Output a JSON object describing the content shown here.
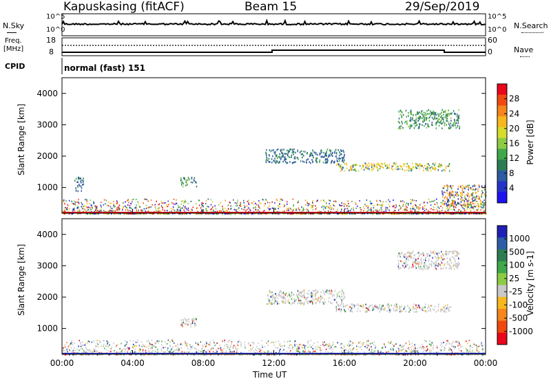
{
  "header": {
    "station": "Kapuskasing (fitACF)",
    "beam": "Beam 15",
    "date": "29/Sep/2019"
  },
  "top_panels": {
    "nsky_label": "N.Sky",
    "nsky_ticks": [
      "10^5",
      "10^0"
    ],
    "nsearch_label": "N.Search",
    "nsearch_ticks": [
      "10^5",
      "10^0"
    ],
    "freq_label_line1": "Freq.",
    "freq_label_line2": "[MHz]",
    "freq_ticks": [
      "18",
      "8"
    ],
    "nave_label": "Nave",
    "nave_ticks": [
      "60",
      "0"
    ],
    "cpid_label": "CPID",
    "cpid_value": "normal (fast) 151"
  },
  "axes": {
    "ylabel": "Slant Range [km]",
    "yticks": [
      "4000",
      "3000",
      "2000",
      "1000"
    ],
    "xticks": [
      "00:00",
      "04:00",
      "08:00",
      "12:00",
      "16:00",
      "20:00",
      "00:00"
    ],
    "xlabel": "Time UT"
  },
  "colorbars": {
    "power": {
      "label": "Power [dB]",
      "ticks": [
        "28",
        "24",
        "20",
        "16",
        "12",
        "8",
        "4"
      ],
      "colors": [
        "#e8071b",
        "#f04a10",
        "#f5851c",
        "#f8b81d",
        "#d7dc2c",
        "#8ecb44",
        "#3fa84a",
        "#2e7d52",
        "#2d5aa0",
        "#2633c8",
        "#1e12f0"
      ]
    },
    "velocity": {
      "label": "Velocity [m s-1]",
      "ticks": [
        "1000",
        "500",
        "100",
        "25",
        "-25",
        "-100",
        "-500",
        "-1000"
      ],
      "colors": [
        "#1f1fb5",
        "#2e5ca8",
        "#2e7d52",
        "#3fa84a",
        "#8ecb44",
        "#c9c9c9",
        "#f8b81d",
        "#f5851c",
        "#f04a10",
        "#e8071b"
      ]
    }
  },
  "chart_data": [
    {
      "type": "heatmap",
      "title": "Power",
      "xlabel": "Time UT",
      "ylabel": "Slant Range [km]",
      "xlim": [
        0,
        24
      ],
      "ylim": [
        180,
        4500
      ],
      "colorbar": {
        "label": "Power [dB]",
        "range": [
          0,
          30
        ]
      },
      "features": [
        {
          "t": [
            0.0,
            24.0
          ],
          "range": [
            180,
            650
          ],
          "level": "high-mixed"
        },
        {
          "t": [
            0.7,
            1.2
          ],
          "range": [
            900,
            1350
          ],
          "level": "low"
        },
        {
          "t": [
            6.7,
            7.6
          ],
          "range": [
            1050,
            1350
          ],
          "level": "medium"
        },
        {
          "t": [
            11.5,
            16.0
          ],
          "range": [
            1800,
            2250
          ],
          "level": "low"
        },
        {
          "t": [
            15.5,
            22.0
          ],
          "range": [
            1550,
            1800
          ],
          "level": "medium-high"
        },
        {
          "t": [
            19.0,
            22.5
          ],
          "range": [
            2900,
            3500
          ],
          "level": "medium"
        },
        {
          "t": [
            21.5,
            24.0
          ],
          "range": [
            400,
            1100
          ],
          "level": "high"
        }
      ]
    },
    {
      "type": "heatmap",
      "title": "Velocity",
      "xlabel": "Time UT",
      "ylabel": "Slant Range [km]",
      "xlim": [
        0,
        24
      ],
      "ylim": [
        180,
        4500
      ],
      "colorbar": {
        "label": "Velocity [m s-1]",
        "range": [
          -1000,
          1000
        ]
      },
      "features": [
        {
          "t": [
            0.0,
            24.0
          ],
          "range": [
            180,
            650
          ],
          "level": "mixed"
        },
        {
          "t": [
            6.7,
            7.6
          ],
          "range": [
            1050,
            1350
          ],
          "level": "near-zero"
        },
        {
          "t": [
            11.5,
            16.0
          ],
          "range": [
            1800,
            2250
          ],
          "level": "near-zero"
        },
        {
          "t": [
            15.5,
            22.0
          ],
          "range": [
            1550,
            1800
          ],
          "level": "near-zero"
        },
        {
          "t": [
            19.0,
            22.5
          ],
          "range": [
            2900,
            3500
          ],
          "level": "near-zero"
        }
      ]
    }
  ]
}
